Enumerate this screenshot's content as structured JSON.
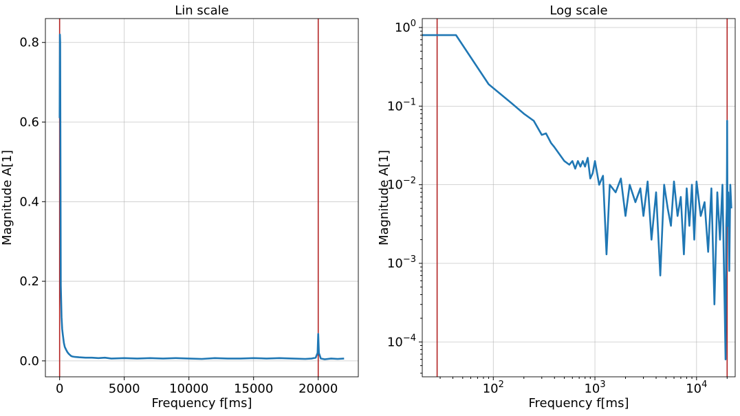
{
  "chart_data": [
    {
      "type": "line",
      "title": "Lin scale",
      "xlabel": "Frequency f[ms]",
      "ylabel": "Magnitude A[1]",
      "xlim": [
        -1100,
        23100
      ],
      "ylim": [
        -0.04,
        0.86
      ],
      "xticks": [
        0,
        5000,
        10000,
        15000,
        20000
      ],
      "xtick_labels": [
        "0",
        "5000",
        "10000",
        "15000",
        "20000"
      ],
      "yticks": [
        0.0,
        0.2,
        0.4,
        0.6,
        0.8
      ],
      "ytick_labels": [
        "0.0",
        "0.2",
        "0.4",
        "0.6",
        "0.8"
      ],
      "grid": true,
      "vlines": [
        0,
        20000
      ],
      "colors": {
        "series": "#1f77b4",
        "vline": "#b22222"
      },
      "series": [
        {
          "x": [
            0,
            20,
            43,
            90,
            150,
            200,
            250,
            330,
            400,
            500,
            600,
            700,
            800,
            900,
            1000,
            1200,
            1500,
            2000,
            2500,
            3000,
            3500,
            4000,
            5000,
            6000,
            7000,
            8000,
            9000,
            10000,
            11000,
            12000,
            13000,
            14000,
            15000,
            16000,
            17000,
            18000,
            19000,
            19500,
            19800,
            19950,
            20000,
            20050,
            20200,
            20500,
            21000,
            21500,
            22000
          ],
          "y": [
            0.61,
            0.82,
            0.8,
            0.19,
            0.11,
            0.08,
            0.065,
            0.045,
            0.035,
            0.028,
            0.022,
            0.018,
            0.015,
            0.012,
            0.011,
            0.01,
            0.009,
            0.008,
            0.008,
            0.007,
            0.008,
            0.006,
            0.007,
            0.006,
            0.007,
            0.006,
            0.007,
            0.006,
            0.005,
            0.007,
            0.006,
            0.006,
            0.007,
            0.006,
            0.007,
            0.006,
            0.005,
            0.006,
            0.008,
            0.02,
            0.068,
            0.02,
            0.006,
            0.004,
            0.006,
            0.005,
            0.006
          ]
        }
      ]
    },
    {
      "type": "line",
      "title": "Log scale",
      "xlabel": "Frequency f[ms]",
      "ylabel": "Magnitude A[1]",
      "xscale": "log",
      "yscale": "log",
      "xlim": [
        20,
        24000
      ],
      "ylim": [
        3.6e-05,
        1.3
      ],
      "xticks": [
        100,
        1000,
        10000
      ],
      "xtick_labels": [
        [
          "10",
          "2"
        ],
        [
          "10",
          "3"
        ],
        [
          "10",
          "4"
        ]
      ],
      "yticks": [
        1,
        0.1,
        0.01,
        0.001,
        0.0001
      ],
      "ytick_labels": [
        [
          "10",
          "0"
        ],
        [
          "10",
          "−1"
        ],
        [
          "10",
          "−2"
        ],
        [
          "10",
          "−3"
        ],
        [
          "10",
          "−4"
        ]
      ],
      "grid": true,
      "vlines": [
        28,
        20000
      ],
      "colors": {
        "series": "#1f77b4",
        "vline": "#b22222"
      },
      "series": [
        {
          "x": [
            20,
            43,
            90,
            150,
            200,
            250,
            300,
            330,
            370,
            400,
            500,
            560,
            600,
            640,
            680,
            720,
            760,
            800,
            850,
            900,
            950,
            1000,
            1100,
            1200,
            1300,
            1400,
            1600,
            1800,
            2000,
            2200,
            2500,
            2800,
            3000,
            3300,
            3600,
            4000,
            4400,
            4800,
            5200,
            5600,
            6000,
            6500,
            7000,
            7500,
            8000,
            8500,
            9000,
            9500,
            10000,
            11000,
            12000,
            13000,
            14000,
            15000,
            16000,
            17000,
            18000,
            19000,
            19300,
            19600,
            19800,
            19950,
            20000,
            20050,
            20200,
            20500,
            21000,
            21500,
            22000
          ],
          "y": [
            0.8,
            0.8,
            0.19,
            0.11,
            0.08,
            0.065,
            0.043,
            0.045,
            0.034,
            0.03,
            0.02,
            0.018,
            0.02,
            0.016,
            0.02,
            0.017,
            0.02,
            0.017,
            0.022,
            0.012,
            0.014,
            0.02,
            0.01,
            0.013,
            0.0013,
            0.01,
            0.008,
            0.012,
            0.004,
            0.01,
            0.006,
            0.009,
            0.004,
            0.011,
            0.002,
            0.008,
            0.0007,
            0.01,
            0.005,
            0.003,
            0.011,
            0.004,
            0.007,
            0.0013,
            0.009,
            0.003,
            0.01,
            0.002,
            0.011,
            0.004,
            0.006,
            0.0014,
            0.009,
            0.0003,
            0.008,
            0.002,
            0.01,
            0.0002,
            6e-05,
            0.003,
            0.005,
            0.02,
            0.065,
            0.02,
            0.003,
            0.008,
            0.0008,
            0.01,
            0.005
          ]
        }
      ]
    }
  ]
}
